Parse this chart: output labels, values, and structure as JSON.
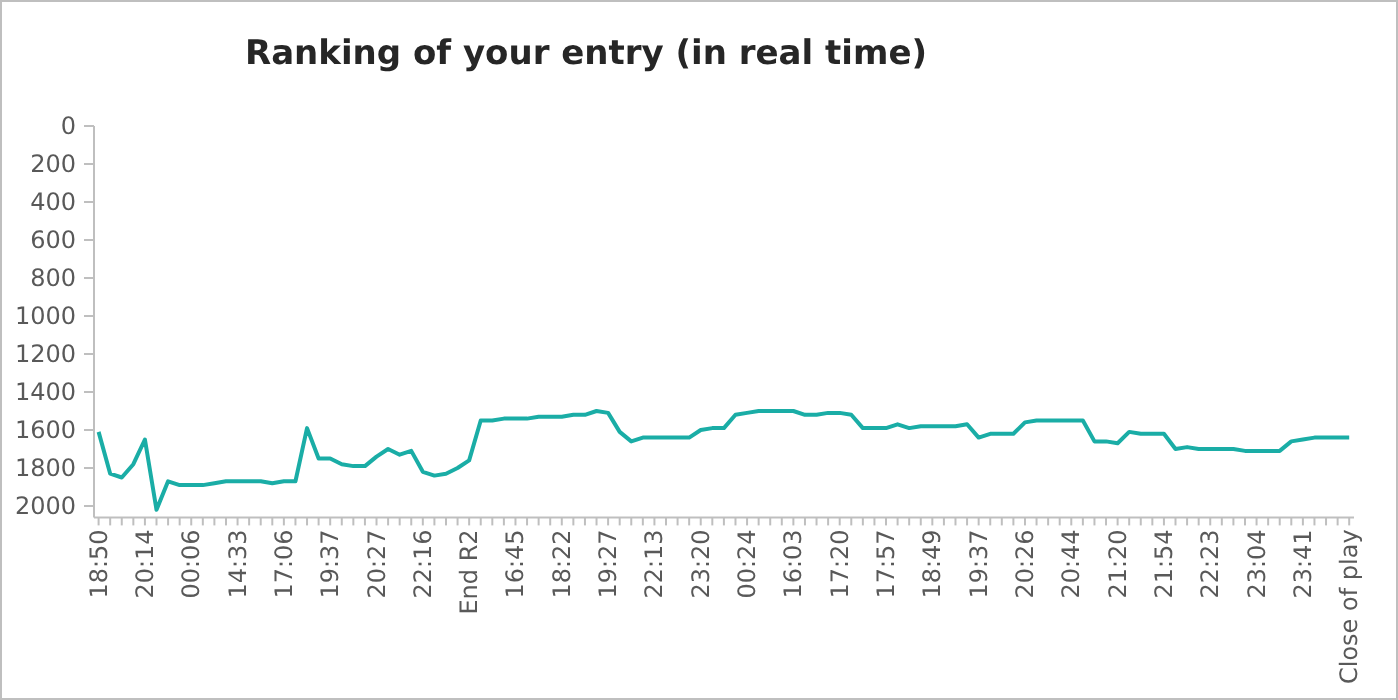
{
  "chart_data": {
    "type": "line",
    "title": "Ranking of your entry (in real time)",
    "categories": [
      "18:50",
      null,
      null,
      null,
      "20:14",
      null,
      null,
      null,
      "00:06",
      null,
      null,
      null,
      "14:33",
      null,
      null,
      null,
      "17:06",
      null,
      null,
      null,
      "19:37",
      null,
      null,
      null,
      "20:27",
      null,
      null,
      null,
      "22:16",
      null,
      null,
      null,
      "End R2",
      null,
      null,
      null,
      "16:45",
      null,
      null,
      null,
      "18:22",
      null,
      null,
      null,
      "19:27",
      null,
      null,
      null,
      "22:13",
      null,
      null,
      null,
      "23:20",
      null,
      null,
      null,
      "00:24",
      null,
      null,
      null,
      "16:03",
      null,
      null,
      null,
      "17:20",
      null,
      null,
      null,
      "17:57",
      null,
      null,
      null,
      "18:49",
      null,
      null,
      null,
      "19:37",
      null,
      null,
      null,
      "20:26",
      null,
      null,
      null,
      "20:44",
      null,
      null,
      null,
      "21:20",
      null,
      null,
      null,
      "21:54",
      null,
      null,
      null,
      "22:23",
      null,
      null,
      null,
      "23:04",
      null,
      null,
      null,
      "23:41",
      null,
      null,
      null,
      "Close of play"
    ],
    "series": [
      {
        "color": "#1aada6",
        "values": [
          1610,
          1830,
          1850,
          1780,
          1650,
          2020,
          1870,
          1890,
          1890,
          1890,
          1880,
          1870,
          1870,
          1870,
          1870,
          1880,
          1870,
          1870,
          1590,
          1750,
          1750,
          1780,
          1790,
          1790,
          1740,
          1700,
          1730,
          1710,
          1820,
          1840,
          1830,
          1800,
          1760,
          1550,
          1550,
          1540,
          1540,
          1540,
          1530,
          1530,
          1530,
          1520,
          1520,
          1500,
          1510,
          1610,
          1660,
          1640,
          1640,
          1640,
          1640,
          1640,
          1600,
          1590,
          1590,
          1520,
          1510,
          1500,
          1500,
          1500,
          1500,
          1520,
          1520,
          1510,
          1510,
          1520,
          1590,
          1590,
          1590,
          1570,
          1590,
          1580,
          1580,
          1580,
          1580,
          1570,
          1640,
          1620,
          1620,
          1620,
          1560,
          1550,
          1550,
          1550,
          1550,
          1550,
          1660,
          1660,
          1670,
          1610,
          1620,
          1620,
          1620,
          1700,
          1690,
          1700,
          1700,
          1700,
          1700,
          1710,
          1710,
          1710,
          1710,
          1660,
          1650,
          1640,
          1640,
          1640,
          1640
        ]
      }
    ],
    "ylim": [
      2060,
      0
    ],
    "yticks": [
      0,
      200,
      400,
      600,
      800,
      1000,
      1200,
      1400,
      1600,
      1800,
      2000
    ],
    "grid": false,
    "line_style": "solid",
    "marker": "none"
  }
}
